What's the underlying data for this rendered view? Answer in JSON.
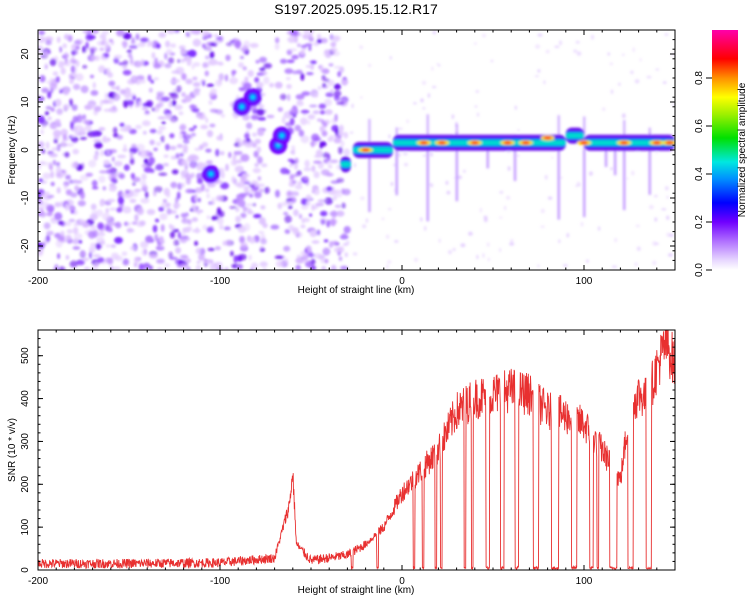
{
  "title": "S197.2025.095.15.12.R17",
  "chart_data": [
    {
      "type": "heatmap",
      "xlabel": "Height of straight line (km)",
      "ylabel": "Frequency (Hz)",
      "xlim": [
        -200,
        150
      ],
      "ylim": [
        -25,
        25
      ],
      "xticks": [
        -200,
        -100,
        0,
        100
      ],
      "yticks": [
        -20,
        -10,
        0,
        10,
        20
      ],
      "colorbar": {
        "label": "Normalized spectral amplitude",
        "range": [
          0,
          1
        ],
        "ticks": [
          "0.0",
          "0.2",
          "0.4",
          "0.6",
          "0.8"
        ]
      },
      "features": {
        "noise_region_x": [
          -200,
          -30
        ],
        "line_segments": [
          {
            "x": [
              -34,
              -28
            ],
            "freq": -3
          },
          {
            "x": [
              -27,
              -5
            ],
            "freq": 0
          },
          {
            "x": [
              -5,
              90
            ],
            "freq": 1.5
          },
          {
            "x": [
              90,
              100
            ],
            "freq": 3
          },
          {
            "x": [
              100,
              150
            ],
            "freq": 1.5
          }
        ],
        "blobs": [
          {
            "x": -105,
            "freq": -5
          },
          {
            "x": -88,
            "freq": 9
          },
          {
            "x": -82,
            "freq": 11
          },
          {
            "x": -68,
            "freq": 1
          },
          {
            "x": -66,
            "freq": 3
          }
        ]
      }
    },
    {
      "type": "line",
      "xlabel": "Height of straight line (km)",
      "ylabel": "SNR (10 * v/v)",
      "xlim": [
        -200,
        150
      ],
      "ylim": [
        0,
        560
      ],
      "xticks": [
        -200,
        -100,
        0,
        100
      ],
      "yticks": [
        0,
        100,
        200,
        300,
        400,
        500
      ],
      "series": [
        {
          "color": "#e83030",
          "x": [
            -200,
            -150,
            -100,
            -70,
            -62,
            -60,
            -58,
            -50,
            -30,
            -20,
            -10,
            0,
            10,
            20,
            30,
            40,
            50,
            60,
            70,
            80,
            90,
            100,
            110,
            120,
            125,
            130,
            135,
            140,
            145,
            150
          ],
          "values": [
            15,
            15,
            17,
            28,
            150,
            225,
            60,
            22,
            35,
            60,
            100,
            180,
            230,
            280,
            370,
            400,
            410,
            420,
            410,
            370,
            360,
            340,
            280,
            210,
            370,
            410,
            400,
            470,
            530,
            480
          ]
        }
      ],
      "dropouts": [
        [
          -28,
          -27
        ],
        [
          -14,
          -13
        ],
        [
          6,
          7
        ],
        [
          11,
          12
        ],
        [
          18,
          19
        ],
        [
          21,
          22
        ],
        [
          34,
          35
        ],
        [
          38,
          39
        ],
        [
          46,
          48
        ],
        [
          54,
          56
        ],
        [
          62,
          64
        ],
        [
          72,
          75
        ],
        [
          82,
          86
        ],
        [
          93,
          96
        ],
        [
          103,
          105
        ],
        [
          107,
          108
        ],
        [
          114,
          118
        ],
        [
          124,
          127
        ],
        [
          134,
          137
        ]
      ]
    }
  ]
}
